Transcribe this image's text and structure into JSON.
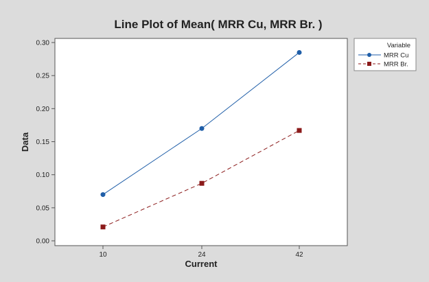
{
  "chart_data": {
    "type": "line",
    "title": "Line Plot of Mean( MRR Cu, MRR Br. )",
    "xlabel": "Current",
    "ylabel": "Data",
    "categories": [
      "10",
      "24",
      "42"
    ],
    "ylim": [
      0.0,
      0.3
    ],
    "yticks": [
      "0.00",
      "0.05",
      "0.10",
      "0.15",
      "0.20",
      "0.25",
      "0.30"
    ],
    "grid": false,
    "legend": {
      "title": "Variable",
      "placement": "right"
    },
    "series": [
      {
        "name": "MRR Cu",
        "values": [
          0.07,
          0.17,
          0.285
        ],
        "color": "#1f5ea8",
        "marker": "circle",
        "line": "solid"
      },
      {
        "name": "MRR Br.",
        "values": [
          0.021,
          0.087,
          0.167
        ],
        "color": "#8b1a1a",
        "marker": "square",
        "line": "dashed"
      }
    ]
  },
  "colors": {
    "outer_background": "#dcdcdc",
    "plot_background": "#ffffff"
  }
}
